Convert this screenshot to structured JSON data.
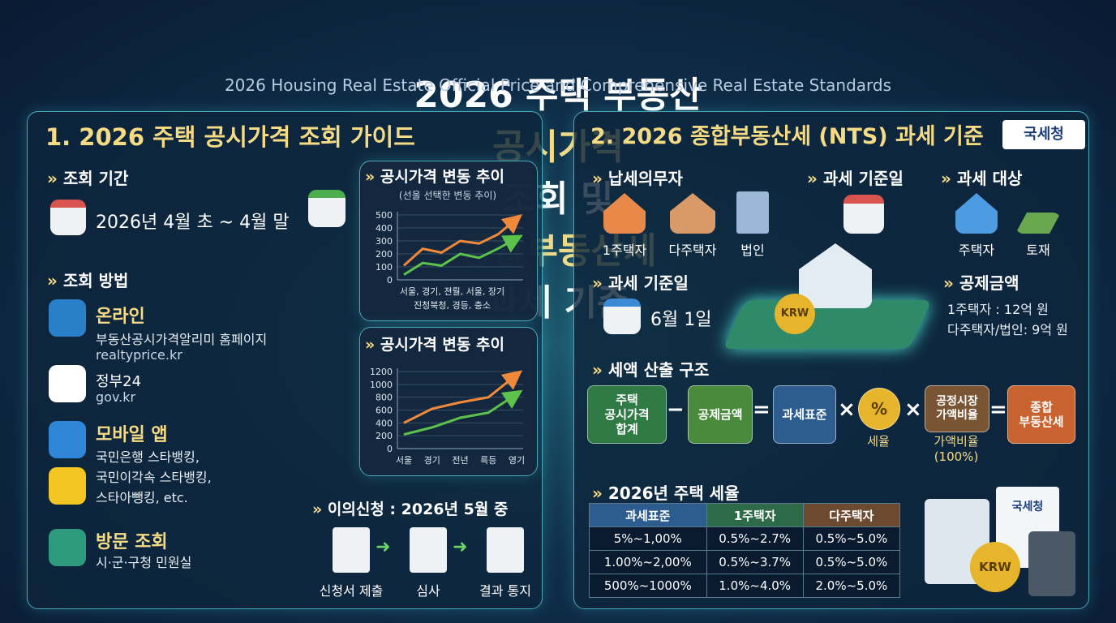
{
  "title_parts": [
    {
      "text": "2026 주택 부동산",
      "highlight": false
    },
    {
      "text": "공시가격",
      "highlight": true
    },
    {
      "text": "조회 및",
      "highlight": false
    },
    {
      "text": "종합부동산세",
      "highlight": true
    },
    {
      "text": "과세 기준",
      "highlight": false
    }
  ],
  "subtitle": "2026 Housing Real Estate Official Price and Comprehensive Real Estate Standards",
  "left": {
    "heading": "1. 2026 주택 공시가격 조회 가이드",
    "period_label": "조회 기간",
    "period": "2026년 4월 초 ~ 4월 말",
    "method_label": "조회 방법",
    "methods": [
      {
        "title": "온라인",
        "lines": [
          "부동산공시가격알리미 홈페이지",
          "realtyprice.kr"
        ]
      },
      {
        "title": "정부24",
        "lines": [
          "gov.kr"
        ]
      },
      {
        "title": "모바일 앱",
        "lines": [
          "국민은행 스타뱅킹,",
          "국민이각속 스타뱅킹,",
          "스타아뺑킹, etc."
        ]
      },
      {
        "title": "방문 조회",
        "lines": [
          "시·군·구청 민원실"
        ]
      }
    ],
    "charts": [
      {
        "type": "line",
        "title": "공시가격 변동 추이",
        "subtitle": "(선울 선택한 변동 추이)",
        "ylim": [
          0,
          500
        ],
        "yticks": [
          0,
          100,
          200,
          300,
          400,
          500
        ],
        "x_labels": [
          "서울, 경기, 젼뤌, 서울, 장기",
          "진청북청, 경등, 충소"
        ],
        "series": [
          {
            "color": "#f08a3a",
            "values": [
              110,
              240,
              210,
              300,
              280,
              350,
              470
            ]
          },
          {
            "color": "#5cc24a",
            "values": [
              40,
              130,
              110,
              200,
              170,
              240,
              320
            ]
          }
        ]
      },
      {
        "type": "line",
        "title": "공시가격 변동 추이",
        "ylim": [
          0,
          1200
        ],
        "yticks": [
          0,
          200,
          400,
          600,
          800,
          1000,
          1200
        ],
        "categories": [
          "서울",
          "경기",
          "전년",
          "륵등",
          "영기"
        ],
        "series": [
          {
            "color": "#f08a3a",
            "values": [
              400,
              620,
              720,
              800,
              1150
            ]
          },
          {
            "color": "#5cc24a",
            "values": [
              220,
              330,
              480,
              560,
              850
            ]
          }
        ]
      }
    ],
    "appeal": {
      "label": "이의신청 : 2026년 5월 중",
      "steps": [
        "신청서 제출",
        "심사",
        "결과 통지"
      ]
    }
  },
  "right": {
    "heading": "2. 2026 종합부동산세 (NTS) 과세 기준",
    "badge": "국세청",
    "taxpayer_label": "납세의무자",
    "taxpayers": [
      "1주택자",
      "다주택자",
      "법인"
    ],
    "base_date_label": "과세 기준일",
    "target_label": "과세 대상",
    "targets": [
      "주택자",
      "토재"
    ],
    "base_date": "6월 1일",
    "deduction_label": "공제금액",
    "deductions": [
      "1주택자 : 12억 원",
      "다주택자/법인: 9억 원"
    ],
    "coin": "KRW",
    "formula_label": "세액 산출 구조",
    "formula": [
      {
        "text": "주택\n공시가격\n합계"
      },
      {
        "text": "공제금액"
      },
      {
        "text": "과세표준"
      },
      {
        "text": "%",
        "caption": "세율"
      },
      {
        "text": "공정시장\n가액비율",
        "caption": "가액비율\n(100%)"
      },
      {
        "text": "종합\n부동산세"
      }
    ],
    "operators": [
      "−",
      "=",
      "×",
      "×",
      "="
    ],
    "rates_label": "2026년 주택 세율",
    "table": {
      "headers": [
        "과세표준",
        "1주택자",
        "다주택자"
      ],
      "rows": [
        [
          "5%~1,00%",
          "0.5%~2.7%",
          "0.5%~5.0%"
        ],
        [
          "1.00%~2,00%",
          "0.5%~3.7%",
          "0.5%~5.0%"
        ],
        [
          "500%~1000%",
          "1.0%~4.0%",
          "2.0%~5.0%"
        ]
      ]
    },
    "doc_label": "국세청"
  }
}
